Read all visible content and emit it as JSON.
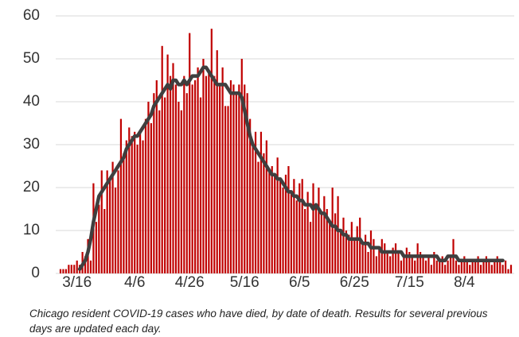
{
  "chart_data": {
    "type": "bar",
    "caption": "Chicago resident COVID-19 cases who have died, by date of death. Results for several previous days are updated each day.",
    "categories": [
      null,
      null,
      null,
      null,
      null,
      null,
      "3/16",
      null,
      null,
      null,
      null,
      null,
      null,
      null,
      null,
      null,
      null,
      null,
      null,
      null,
      null,
      null,
      null,
      null,
      null,
      null,
      null,
      "4/6",
      null,
      null,
      null,
      null,
      null,
      null,
      null,
      null,
      null,
      null,
      null,
      null,
      null,
      null,
      null,
      null,
      null,
      null,
      null,
      "4/26",
      null,
      null,
      null,
      null,
      null,
      null,
      null,
      null,
      null,
      null,
      null,
      null,
      null,
      null,
      null,
      null,
      null,
      null,
      null,
      "5/16",
      null,
      null,
      null,
      null,
      null,
      null,
      null,
      null,
      null,
      null,
      null,
      null,
      null,
      null,
      null,
      null,
      null,
      null,
      null,
      "6/5",
      null,
      null,
      null,
      null,
      null,
      null,
      null,
      null,
      null,
      null,
      null,
      null,
      null,
      null,
      null,
      null,
      null,
      null,
      null,
      "6/25",
      null,
      null,
      null,
      null,
      null,
      null,
      null,
      null,
      null,
      null,
      null,
      null,
      null,
      null,
      null,
      null,
      null,
      null,
      null,
      "7/15",
      null,
      null,
      null,
      null,
      null,
      null,
      null,
      null,
      null,
      null,
      null,
      null,
      null,
      null,
      null,
      null,
      null,
      null,
      null,
      "8/4",
      null,
      null,
      null,
      null,
      null,
      null,
      null,
      null,
      null,
      null,
      null,
      null,
      null,
      null,
      null,
      null,
      null
    ],
    "series": [
      {
        "type": "bar",
        "color": "#c00000",
        "values": [
          1,
          1,
          1,
          2,
          2,
          2,
          3,
          2,
          5,
          4,
          8,
          3,
          21,
          12,
          16,
          24,
          15,
          24,
          22,
          26,
          20,
          24,
          36,
          28,
          31,
          34,
          32,
          33,
          30,
          33,
          31,
          36,
          40,
          35,
          42,
          45,
          38,
          53,
          41,
          51,
          46,
          49,
          44,
          40,
          38,
          46,
          42,
          56,
          44,
          45,
          48,
          41,
          50,
          46,
          47,
          57,
          46,
          52,
          44,
          48,
          39,
          39,
          45,
          44,
          42,
          44,
          50,
          44,
          42,
          36,
          30,
          33,
          26,
          33,
          28,
          31,
          24,
          25,
          23,
          27,
          22,
          20,
          23,
          25,
          19,
          22,
          17,
          21,
          22,
          15,
          19,
          12,
          21,
          16,
          20,
          14,
          18,
          15,
          12,
          20,
          14,
          18,
          10,
          13,
          10,
          9,
          12,
          8,
          11,
          13,
          7,
          9,
          5,
          10,
          8,
          4,
          6,
          8,
          7,
          5,
          4,
          6,
          7,
          5,
          3,
          4,
          6,
          5,
          4,
          3,
          7,
          5,
          4,
          3,
          4,
          2,
          5,
          3,
          3,
          4,
          2,
          3,
          4,
          8,
          3,
          2,
          3,
          4,
          3,
          2,
          3,
          3,
          4,
          2,
          3,
          4,
          3,
          2,
          3,
          4,
          3,
          2,
          3,
          1,
          2
        ]
      },
      {
        "type": "line",
        "color": "#3f3f3f",
        "values": [
          null,
          null,
          null,
          null,
          null,
          null,
          null,
          1,
          2,
          3,
          5,
          8,
          12,
          15,
          18,
          19,
          20,
          21,
          22,
          23,
          24,
          25,
          26,
          27,
          29,
          30,
          31,
          32,
          32,
          33,
          34,
          35,
          36,
          37,
          39,
          40,
          41,
          42,
          43,
          44,
          43,
          45,
          45,
          44,
          44,
          45,
          44,
          45,
          46,
          46,
          46,
          47,
          48,
          48,
          47,
          46,
          45,
          44,
          44,
          44,
          44,
          43,
          42,
          42,
          42,
          42,
          41,
          38,
          35,
          32,
          30,
          29,
          28,
          27,
          26,
          25,
          24,
          23,
          23,
          22,
          22,
          21,
          20,
          19,
          19,
          18,
          18,
          17,
          17,
          16,
          16,
          16,
          15,
          16,
          15,
          14,
          14,
          13,
          12,
          11,
          11,
          10,
          10,
          9,
          9,
          8,
          8,
          8,
          8,
          8,
          7,
          7,
          7,
          6,
          6,
          6,
          6,
          5,
          5,
          5,
          5,
          5,
          5,
          5,
          5,
          4,
          4,
          4,
          4,
          4,
          4,
          4,
          4,
          4,
          4,
          4,
          4,
          4,
          3,
          3,
          3,
          4,
          4,
          4,
          4,
          3,
          3,
          3,
          3,
          3,
          3,
          3,
          3,
          3,
          3,
          3,
          3,
          3,
          3,
          3,
          3,
          3,
          null,
          null,
          null
        ]
      }
    ],
    "ylim": [
      0,
      60
    ],
    "yticks": [
      0,
      10,
      20,
      30,
      40,
      50,
      60
    ],
    "grid": true
  }
}
